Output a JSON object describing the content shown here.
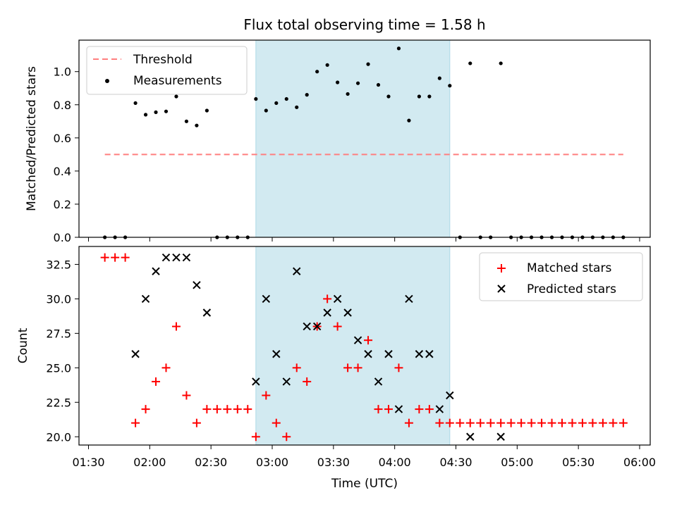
{
  "title": "Flux total observing time = 1.58 h",
  "xlabel": "Time (UTC)",
  "x_ticks": [
    "01:30",
    "02:00",
    "02:30",
    "03:00",
    "03:30",
    "04:00",
    "04:30",
    "05:00",
    "05:30",
    "06:00"
  ],
  "colors": {
    "shade": "#add8e6",
    "threshold": "#ff7f7f",
    "measurement": "#000000",
    "matched": "#ff0000",
    "predicted": "#000000"
  },
  "chart_data": [
    {
      "type": "scatter",
      "ylabel": "Matched/Predicted stars",
      "ylim": [
        0,
        1.19
      ],
      "y_ticks": [
        "0.0",
        "0.2",
        "0.4",
        "0.6",
        "0.8",
        "1.0"
      ],
      "shaded_x_range": [
        "02:52",
        "04:27"
      ],
      "threshold": {
        "name": "Threshold",
        "y": 0.5,
        "x_range": [
          "01:38",
          "05:52"
        ]
      },
      "legend": {
        "position": "upper left",
        "entries": [
          "Threshold",
          "Measurements"
        ]
      },
      "series": [
        {
          "name": "Measurements",
          "points": [
            [
              "01:38",
              0.0
            ],
            [
              "01:43",
              0.0
            ],
            [
              "01:48",
              0.0
            ],
            [
              "01:53",
              0.81
            ],
            [
              "01:58",
              0.74
            ],
            [
              "02:03",
              0.755
            ],
            [
              "02:08",
              0.76
            ],
            [
              "02:13",
              0.85
            ],
            [
              "02:18",
              0.7
            ],
            [
              "02:23",
              0.675
            ],
            [
              "02:28",
              0.765
            ],
            [
              "02:33",
              0.0
            ],
            [
              "02:38",
              0.0
            ],
            [
              "02:43",
              0.0
            ],
            [
              "02:48",
              0.0
            ],
            [
              "02:52",
              0.835
            ],
            [
              "02:57",
              0.765
            ],
            [
              "03:02",
              0.81
            ],
            [
              "03:07",
              0.835
            ],
            [
              "03:12",
              0.785
            ],
            [
              "03:17",
              0.86
            ],
            [
              "03:22",
              1.0
            ],
            [
              "03:27",
              1.04
            ],
            [
              "03:32",
              0.935
            ],
            [
              "03:37",
              0.865
            ],
            [
              "03:42",
              0.93
            ],
            [
              "03:47",
              1.045
            ],
            [
              "03:52",
              0.92
            ],
            [
              "03:57",
              0.85
            ],
            [
              "04:02",
              1.14
            ],
            [
              "04:07",
              0.705
            ],
            [
              "04:12",
              0.85
            ],
            [
              "04:17",
              0.85
            ],
            [
              "04:22",
              0.96
            ],
            [
              "04:27",
              0.915
            ],
            [
              "04:32",
              0.0
            ],
            [
              "04:37",
              1.05
            ],
            [
              "04:42",
              0.0
            ],
            [
              "04:47",
              0.0
            ],
            [
              "04:52",
              1.05
            ],
            [
              "04:57",
              0.0
            ],
            [
              "05:02",
              0.0
            ],
            [
              "05:07",
              0.0
            ],
            [
              "05:12",
              0.0
            ],
            [
              "05:17",
              0.0
            ],
            [
              "05:22",
              0.0
            ],
            [
              "05:27",
              0.0
            ],
            [
              "05:32",
              0.0
            ],
            [
              "05:37",
              0.0
            ],
            [
              "05:42",
              0.0
            ],
            [
              "05:47",
              0.0
            ],
            [
              "05:52",
              0.0
            ]
          ]
        }
      ]
    },
    {
      "type": "scatter",
      "ylabel": "Count",
      "ylim": [
        19.4,
        33.8
      ],
      "y_ticks": [
        "20.0",
        "22.5",
        "25.0",
        "27.5",
        "30.0",
        "32.5"
      ],
      "shaded_x_range": [
        "02:52",
        "04:27"
      ],
      "legend": {
        "position": "upper right",
        "entries": [
          "Matched stars",
          "Predicted stars"
        ]
      },
      "series": [
        {
          "name": "Matched stars",
          "marker": "+",
          "points": [
            [
              "01:38",
              33
            ],
            [
              "01:43",
              33
            ],
            [
              "01:48",
              33
            ],
            [
              "01:53",
              21
            ],
            [
              "01:58",
              22
            ],
            [
              "02:03",
              24
            ],
            [
              "02:08",
              25
            ],
            [
              "02:13",
              28
            ],
            [
              "02:18",
              23
            ],
            [
              "02:23",
              21
            ],
            [
              "02:28",
              22
            ],
            [
              "02:33",
              22
            ],
            [
              "02:38",
              22
            ],
            [
              "02:43",
              22
            ],
            [
              "02:48",
              22
            ],
            [
              "02:52",
              20
            ],
            [
              "02:57",
              23
            ],
            [
              "03:02",
              21
            ],
            [
              "03:07",
              20
            ],
            [
              "03:12",
              25
            ],
            [
              "03:17",
              24
            ],
            [
              "03:22",
              28
            ],
            [
              "03:27",
              30
            ],
            [
              "03:32",
              28
            ],
            [
              "03:37",
              25
            ],
            [
              "03:42",
              25
            ],
            [
              "03:47",
              27
            ],
            [
              "03:52",
              22
            ],
            [
              "03:57",
              22
            ],
            [
              "04:02",
              25
            ],
            [
              "04:07",
              21
            ],
            [
              "04:12",
              22
            ],
            [
              "04:17",
              22
            ],
            [
              "04:22",
              21
            ],
            [
              "04:27",
              21
            ],
            [
              "04:32",
              21
            ],
            [
              "04:37",
              21
            ],
            [
              "04:42",
              21
            ],
            [
              "04:47",
              21
            ],
            [
              "04:52",
              21
            ],
            [
              "04:57",
              21
            ],
            [
              "05:02",
              21
            ],
            [
              "05:07",
              21
            ],
            [
              "05:12",
              21
            ],
            [
              "05:17",
              21
            ],
            [
              "05:22",
              21
            ],
            [
              "05:27",
              21
            ],
            [
              "05:32",
              21
            ],
            [
              "05:37",
              21
            ],
            [
              "05:42",
              21
            ],
            [
              "05:47",
              21
            ],
            [
              "05:52",
              21
            ]
          ]
        },
        {
          "name": "Predicted stars",
          "marker": "x",
          "points": [
            [
              "01:53",
              26
            ],
            [
              "01:58",
              30
            ],
            [
              "02:03",
              32
            ],
            [
              "02:08",
              33
            ],
            [
              "02:13",
              33
            ],
            [
              "02:18",
              33
            ],
            [
              "02:23",
              31
            ],
            [
              "02:28",
              29
            ],
            [
              "02:52",
              24
            ],
            [
              "02:57",
              30
            ],
            [
              "03:02",
              26
            ],
            [
              "03:07",
              24
            ],
            [
              "03:12",
              32
            ],
            [
              "03:17",
              28
            ],
            [
              "03:22",
              28
            ],
            [
              "03:27",
              29
            ],
            [
              "03:32",
              30
            ],
            [
              "03:37",
              29
            ],
            [
              "03:42",
              27
            ],
            [
              "03:47",
              26
            ],
            [
              "03:52",
              24
            ],
            [
              "03:57",
              26
            ],
            [
              "04:02",
              22
            ],
            [
              "04:07",
              30
            ],
            [
              "04:12",
              26
            ],
            [
              "04:17",
              26
            ],
            [
              "04:22",
              22
            ],
            [
              "04:27",
              23
            ],
            [
              "04:37",
              20
            ],
            [
              "04:52",
              20
            ]
          ]
        }
      ]
    }
  ]
}
